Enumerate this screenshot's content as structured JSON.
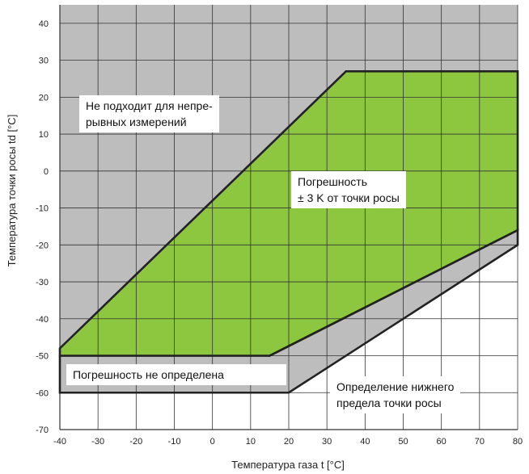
{
  "chart_data": {
    "type": "area",
    "xlabel": "Температура газа t [°C]",
    "ylabel": "Температура точки росы td [°C]",
    "xlim": [
      -40,
      80
    ],
    "ylim": [
      -70,
      45
    ],
    "x_ticks": [
      -40,
      -30,
      -20,
      -10,
      0,
      10,
      20,
      30,
      40,
      50,
      60,
      70,
      80
    ],
    "y_ticks": [
      -70,
      -60,
      -50,
      -40,
      -30,
      -20,
      -10,
      0,
      10,
      20,
      30,
      40
    ],
    "x_tick_labels": [
      "-40",
      "-30",
      "-20",
      "-10",
      "0",
      "10",
      "20",
      "30",
      "40",
      "50",
      "60",
      "70",
      "80"
    ],
    "y_tick_labels": [
      "-70",
      "-60",
      "-50",
      "-40",
      "-30",
      "-20",
      "-10",
      "0",
      "10",
      "20",
      "30",
      "40"
    ],
    "grid": true,
    "colors": {
      "unsuitable_region": "#bdbdbd",
      "accuracy_region": "#8dc63f",
      "grid": "#333333",
      "boundary": "#222222"
    },
    "regions": [
      {
        "name": "unsuitable",
        "points": [
          [
            -40,
            45
          ],
          [
            80,
            45
          ],
          [
            80,
            27
          ],
          [
            35,
            27
          ],
          [
            -40,
            -48
          ]
        ]
      },
      {
        "name": "accuracy",
        "points": [
          [
            -40,
            -48
          ],
          [
            35,
            27
          ],
          [
            80,
            27
          ],
          [
            80,
            -16
          ],
          [
            15,
            -50
          ],
          [
            -40,
            -50
          ]
        ]
      },
      {
        "name": "lower_limit_band",
        "points": [
          [
            -40,
            -50
          ],
          [
            15,
            -50
          ],
          [
            80,
            -16
          ],
          [
            80,
            -20
          ],
          [
            20,
            -60
          ],
          [
            -40,
            -60
          ]
        ]
      }
    ],
    "annotations": [
      {
        "id": "unsuitable",
        "text": "Не подходит для непре-\nрывных измерений"
      },
      {
        "id": "accuracy",
        "text": "Погрешность\n± 3 K от точки росы"
      },
      {
        "id": "undefined",
        "text": "Погрешность не определена"
      },
      {
        "id": "lower_limit",
        "text": "Определение нижнего\nпредела точки росы"
      }
    ]
  }
}
